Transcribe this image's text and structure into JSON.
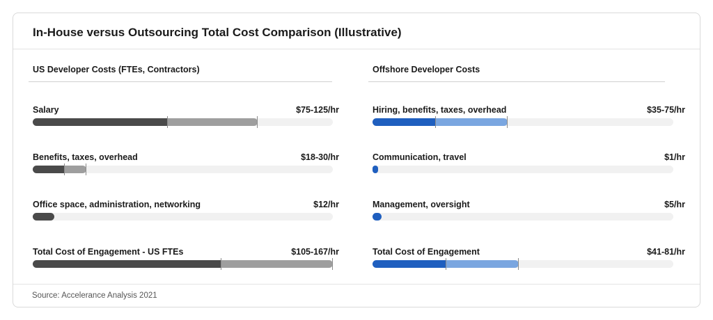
{
  "title": "In-House versus Outsourcing Total Cost Comparison (Illustrative)",
  "source": "Source: Accelerance Analysis 2021",
  "colors": {
    "us_low": "#4a4a4a",
    "us_range": "#9e9e9e",
    "offshore_low": "#1f5fbf",
    "offshore_range": "#7aa6e0",
    "track": "#f1f1f1"
  },
  "chart_data": [
    {
      "type": "bar",
      "title": "US Developer Costs (FTEs, Contractors)",
      "unit": "$/hr",
      "xlim": [
        0,
        167
      ],
      "categories": [
        "Salary",
        "Benefits, taxes, overhead",
        "Office space, administration, networking",
        "Total Cost of Engagement - US FTEs"
      ],
      "value_labels": [
        "$75-125/hr",
        "$18-30/hr",
        "$12/hr",
        "$105-167/hr"
      ],
      "low": [
        75,
        18,
        12,
        105
      ],
      "high": [
        125,
        30,
        12,
        167
      ]
    },
    {
      "type": "bar",
      "title": "Offshore Developer Costs",
      "unit": "$/hr",
      "xlim": [
        0,
        167
      ],
      "categories": [
        "Hiring, benefits, taxes, overhead",
        "Communication, travel",
        "Management, oversight",
        "Total Cost of Engagement"
      ],
      "value_labels": [
        "$35-75/hr",
        "$1/hr",
        "$5/hr",
        "$41-81/hr"
      ],
      "low": [
        35,
        1,
        5,
        41
      ],
      "high": [
        75,
        1,
        5,
        81
      ]
    }
  ]
}
